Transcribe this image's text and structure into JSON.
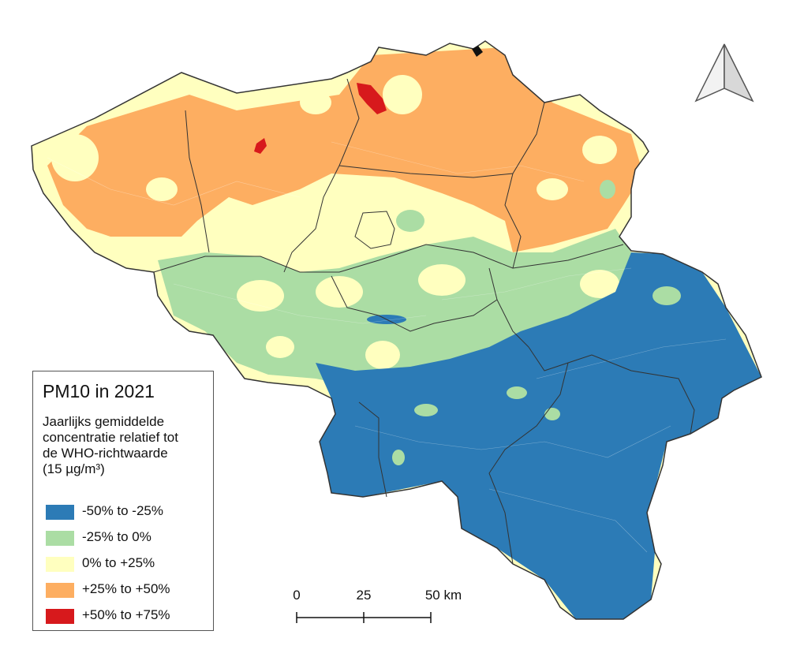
{
  "legend": {
    "title": "PM10 in 2021",
    "subtitle": "Jaarlijks gemiddelde\nconcentratie relatief tot\nde WHO-richtwaarde\n(15 µg/m³)",
    "classes": [
      {
        "label": "-50% to -25%",
        "color": "#2c7bb6"
      },
      {
        "label": "-25% to 0%",
        "color": "#abdda4"
      },
      {
        "label": "0% to +25%",
        "color": "#ffffbf"
      },
      {
        "label": "+25% to +50%",
        "color": "#fdae61"
      },
      {
        "label": "+50% to +75%",
        "color": "#d7191c"
      }
    ]
  },
  "scale_bar": {
    "ticks": [
      "0",
      "25",
      "50 km"
    ]
  },
  "north_arrow": {
    "icon": "north-arrow-icon"
  },
  "colors": {
    "border": "#333333",
    "white_lines": "#ffffff"
  }
}
